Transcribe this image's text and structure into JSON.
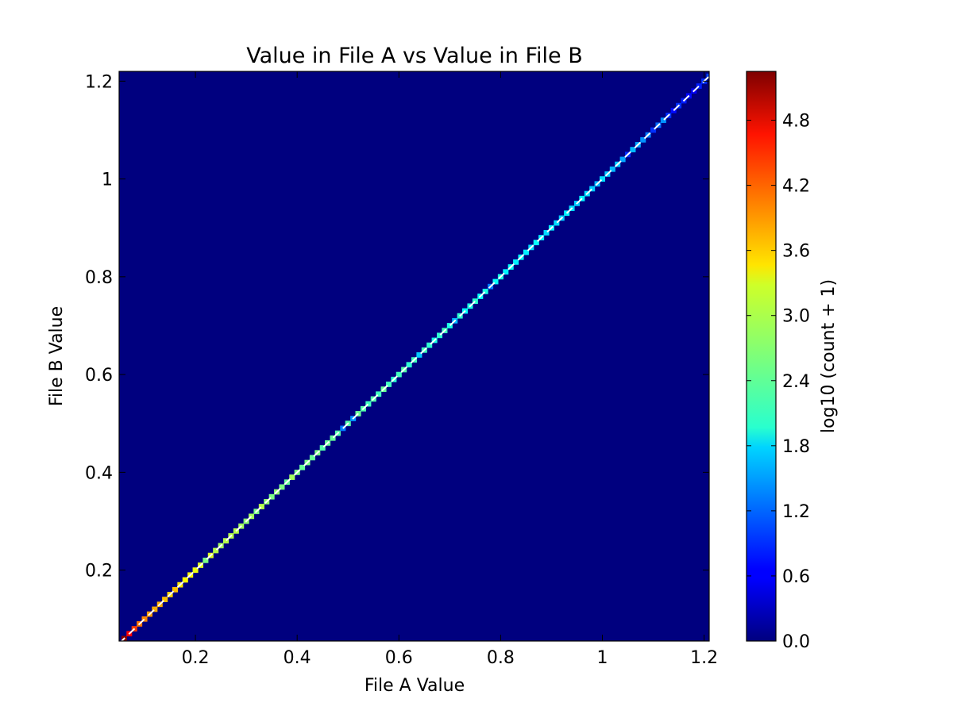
{
  "chart_data": {
    "type": "heatmap",
    "title": "Value in File A vs Value in File B",
    "xlabel": "File A Value",
    "ylabel": "File B Value",
    "xlim": [
      0.05,
      1.21
    ],
    "ylim": [
      0.055,
      1.22
    ],
    "x_ticks": [
      {
        "value": 0.2,
        "label": "0.2"
      },
      {
        "value": 0.4,
        "label": "0.4"
      },
      {
        "value": 0.6,
        "label": "0.6"
      },
      {
        "value": 0.8,
        "label": "0.8"
      },
      {
        "value": 1.0,
        "label": "1"
      },
      {
        "value": 1.2,
        "label": "1.2"
      }
    ],
    "y_ticks": [
      {
        "value": 0.2,
        "label": "0.2"
      },
      {
        "value": 0.4,
        "label": "0.4"
      },
      {
        "value": 0.6,
        "label": "0.6"
      },
      {
        "value": 0.8,
        "label": "0.8"
      },
      {
        "value": 1.0,
        "label": "1"
      },
      {
        "value": 1.2,
        "label": "1.2"
      }
    ],
    "background_color": "#00007f",
    "reference_line": {
      "style": "dashed",
      "color": "#ffffff",
      "from": [
        0.05,
        0.05
      ],
      "to": [
        1.21,
        1.21
      ]
    },
    "colorbar": {
      "label": "log10 (count + 1)",
      "colormap": "jet",
      "range": [
        0.0,
        5.25
      ],
      "ticks": [
        {
          "value": 0.0,
          "label": "0.0"
        },
        {
          "value": 0.6,
          "label": "0.6"
        },
        {
          "value": 1.2,
          "label": "1.2"
        },
        {
          "value": 1.8,
          "label": "1.8"
        },
        {
          "value": 2.4,
          "label": "2.4"
        },
        {
          "value": 3.0,
          "label": "3.0"
        },
        {
          "value": 3.6,
          "label": "3.6"
        },
        {
          "value": 4.2,
          "label": "4.2"
        },
        {
          "value": 4.8,
          "label": "4.8"
        }
      ]
    },
    "diagonal_cells": {
      "x_start": 0.06,
      "x_step": 0.01,
      "values": [
        5.2,
        4.6,
        4.3,
        4.0,
        3.9,
        3.8,
        3.7,
        3.7,
        3.6,
        3.5,
        3.6,
        3.4,
        3.3,
        3.3,
        3.2,
        3.1,
        2.6,
        3.1,
        2.9,
        2.8,
        2.9,
        2.9,
        2.9,
        2.8,
        2.7,
        2.8,
        2.6,
        2.9,
        2.7,
        2.6,
        2.7,
        2.6,
        2.5,
        2.8,
        2.6,
        2.5,
        2.6,
        2.5,
        2.6,
        2.4,
        2.5,
        2.5,
        2.4,
        1.3,
        2.4,
        1.4,
        2.5,
        2.4,
        2.3,
        2.4,
        2.3,
        2.5,
        2.3,
        2.2,
        2.3,
        2.4,
        2.2,
        2.3,
        1.7,
        2.3,
        2.2,
        2.1,
        2.2,
        2.3,
        2.1,
        1.6,
        2.2,
        2.0,
        2.1,
        2.2,
        2.0,
        2.1,
        1.3,
        2.0,
        2.1,
        1.9,
        2.0,
        1.9,
        2.0,
        1.9,
        1.8,
        2.0,
        1.9,
        1.8,
        1.9,
        1.8,
        1.7,
        1.9,
        1.8,
        1.7,
        1.9,
        1.8,
        1.7,
        1.6,
        1.8,
        1.7,
        1.6,
        1.7,
        1.5,
        0.9,
        1.6,
        1.5,
        1.4,
        1.3,
        0.9,
        1.2,
        1.4,
        0.9,
        0.7,
        0.9,
        0.8,
        0.7,
        0.6,
        0.8,
        0.9,
        1.0
      ]
    }
  }
}
